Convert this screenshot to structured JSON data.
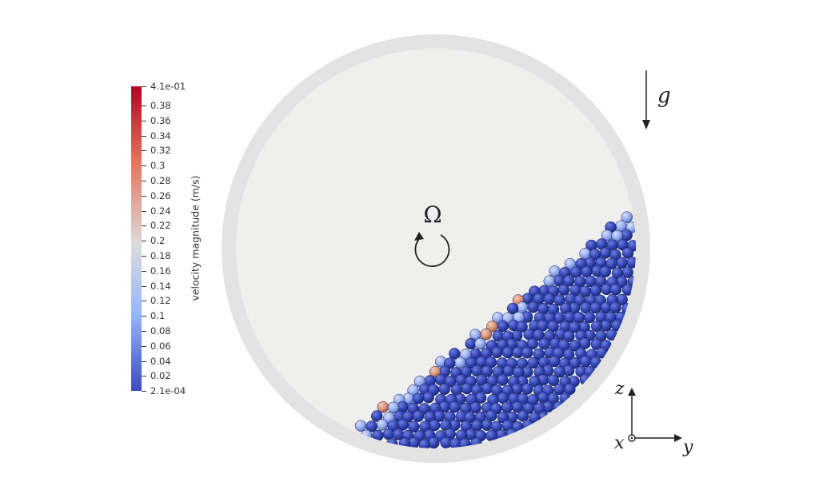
{
  "colorbar": {
    "title": "velocity magnitude (m/s)",
    "max_label": "4.1e-01",
    "min_label": "2.1e-04",
    "tick_labels": [
      "0.38",
      "0.36",
      "0.34",
      "0.32",
      "0.3",
      "0.28",
      "0.26",
      "0.24",
      "0.22",
      "0.2",
      "0.18",
      "0.16",
      "0.14",
      "0.12",
      "0.1",
      "0.08",
      "0.06",
      "0.04",
      "0.02"
    ],
    "colors": {
      "high": "#b40426",
      "mid": "#dddcdc",
      "low": "#3b4cc0"
    }
  },
  "labels": {
    "rotation_symbol": "Ω",
    "gravity": "g",
    "axis_x": "x",
    "axis_y": "y",
    "axis_z": "z"
  },
  "colors": {
    "drum_rim": "#e3e3e3",
    "drum_inner": "#efefed",
    "particle": "#3344b0"
  }
}
